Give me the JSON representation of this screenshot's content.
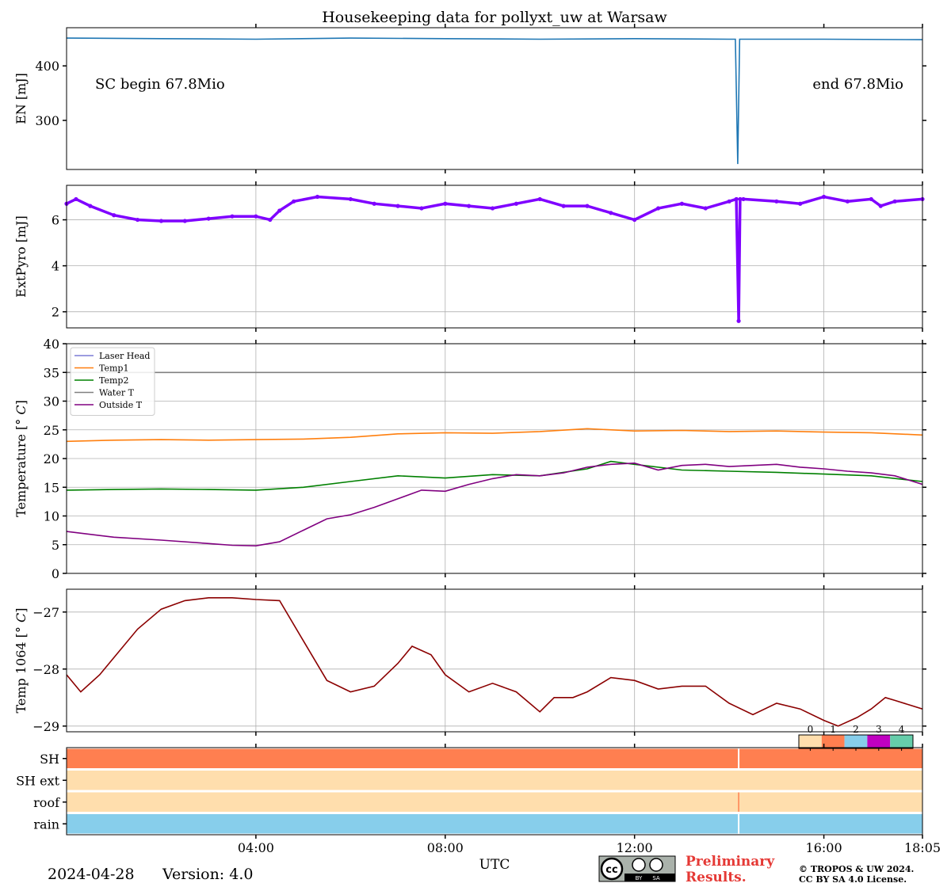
{
  "title": "Housekeeping data for pollyxt_uw at Warsaw",
  "xaxis": {
    "label": "UTC",
    "range_hours": [
      0,
      18.0833
    ],
    "ticks": [
      4,
      8,
      12,
      16,
      18.0833
    ],
    "tick_labels": [
      "04:00",
      "08:00",
      "12:00",
      "16:00",
      "18:05"
    ]
  },
  "footer": {
    "date": "2024-04-28",
    "version": "Version: 4.0",
    "preliminary": "Preliminary Results.",
    "copyright_line1": "© TROPOS & UW 2024.",
    "copyright_line2": "CC BY SA 4.0 License.",
    "license_badge": [
      "cc",
      "BY",
      "SA"
    ]
  },
  "colors": {
    "en": "#1f77b4",
    "extpyro": "#7f00ff",
    "laser_head": "#7b7bd6",
    "temp1": "#ff7f0e",
    "temp2": "#008000",
    "water_t": "#808080",
    "outside_t": "#800080",
    "temp1064": "#8b0000",
    "preliminary": "#e53935",
    "status": [
      "#ffdead",
      "#ff7f50",
      "#87ceeb",
      "#c000c0",
      "#66cdaa"
    ]
  },
  "chart_data": [
    {
      "type": "line",
      "name": "energy",
      "ylabel": "EN [mJ]",
      "ylim": [
        210,
        470
      ],
      "yticks": [
        300,
        400
      ],
      "grid": false,
      "annotations": [
        "SC begin 67.8Mio",
        "end 67.8Mio"
      ],
      "series": [
        {
          "values_x": [
            0,
            2,
            4,
            6,
            8,
            10,
            12,
            14,
            14.13,
            14.18,
            14.22,
            16,
            18.0833
          ],
          "values_y": [
            451,
            450,
            449,
            451,
            450,
            449,
            450,
            449,
            449,
            220,
            449,
            449,
            448
          ]
        }
      ]
    },
    {
      "type": "line",
      "name": "extpyro",
      "ylabel": "ExtPyro [mJ]",
      "ylim": [
        1.3,
        7.5
      ],
      "yticks": [
        2,
        4,
        6
      ],
      "grid": true,
      "series": [
        {
          "values_x": [
            0,
            0.2,
            0.5,
            1,
            1.5,
            2,
            2.5,
            3,
            3.5,
            4,
            4.3,
            4.5,
            4.8,
            5.3,
            6,
            6.5,
            7,
            7.5,
            8,
            8.5,
            9,
            9.5,
            10,
            10.5,
            11,
            11.5,
            12,
            12.5,
            13,
            13.5,
            14,
            14.15,
            14.2,
            14.23,
            14.3,
            15,
            15.5,
            16,
            16.5,
            17,
            17.2,
            17.5,
            18.0833
          ],
          "values_y": [
            6.7,
            6.9,
            6.6,
            6.2,
            6.0,
            5.95,
            5.95,
            6.05,
            6.15,
            6.15,
            6.0,
            6.4,
            6.8,
            7.0,
            6.9,
            6.7,
            6.6,
            6.5,
            6.7,
            6.6,
            6.5,
            6.7,
            6.9,
            6.6,
            6.6,
            6.3,
            6.0,
            6.5,
            6.7,
            6.5,
            6.8,
            6.9,
            1.6,
            6.9,
            6.9,
            6.8,
            6.7,
            7.0,
            6.8,
            6.9,
            6.6,
            6.8,
            6.9
          ]
        }
      ]
    },
    {
      "type": "line",
      "name": "temperature",
      "ylabel": "Temperature [$^\\circ C$]",
      "ylim": [
        0,
        40
      ],
      "yticks": [
        0,
        5,
        10,
        15,
        20,
        25,
        30,
        35,
        40
      ],
      "grid": true,
      "legend": "top-left",
      "series": [
        {
          "name": "Laser Head",
          "values_x": [],
          "values_y": []
        },
        {
          "name": "Temp1",
          "values_x": [
            0,
            1,
            2,
            3,
            4,
            5,
            6,
            7,
            8,
            9,
            10,
            11,
            12,
            13,
            14,
            15,
            16,
            17,
            18.0833
          ],
          "values_y": [
            23,
            23.2,
            23.3,
            23.2,
            23.3,
            23.4,
            23.7,
            24.3,
            24.5,
            24.4,
            24.7,
            25.2,
            24.8,
            24.9,
            24.7,
            24.8,
            24.6,
            24.5,
            24.1
          ]
        },
        {
          "name": "Temp2",
          "values_x": [
            0,
            1,
            2,
            3,
            4,
            5,
            6,
            7,
            8,
            9,
            10,
            11,
            11.5,
            12,
            13,
            14,
            15,
            16,
            17,
            18.0833
          ],
          "values_y": [
            14.5,
            14.6,
            14.7,
            14.6,
            14.5,
            15.0,
            16.0,
            17.0,
            16.6,
            17.2,
            17.0,
            18.2,
            19.5,
            19.0,
            18.0,
            17.8,
            17.6,
            17.3,
            17.0,
            16.0
          ]
        },
        {
          "name": "Water T",
          "values_x": [
            0,
            18.0833
          ],
          "values_y": [
            35,
            35
          ]
        },
        {
          "name": "Outside T",
          "values_x": [
            0,
            1,
            2,
            3,
            3.5,
            4,
            4.5,
            5,
            5.5,
            6,
            6.5,
            7,
            7.5,
            8,
            8.5,
            9,
            9.5,
            10,
            10.5,
            11,
            11.5,
            12,
            12.5,
            13,
            13.5,
            14,
            14.5,
            15,
            15.5,
            16,
            16.5,
            17,
            17.5,
            18.0833
          ],
          "values_y": [
            7.3,
            6.3,
            5.8,
            5.2,
            4.9,
            4.8,
            5.5,
            7.5,
            9.5,
            10.2,
            11.5,
            13.0,
            14.5,
            14.3,
            15.5,
            16.5,
            17.2,
            17.0,
            17.5,
            18.5,
            19.0,
            19.2,
            18.0,
            18.8,
            19.0,
            18.6,
            18.8,
            19.0,
            18.5,
            18.2,
            17.8,
            17.5,
            17.0,
            15.5
          ]
        }
      ]
    },
    {
      "type": "line",
      "name": "temp1064",
      "ylabel": "Temp 1064 [$^\\circ C$]",
      "ylim": [
        -29.1,
        -26.6
      ],
      "yticks": [
        -29,
        -28,
        -27
      ],
      "ytick_labels": [
        "−29",
        "−28",
        "−27"
      ],
      "grid": true,
      "series": [
        {
          "values_x": [
            0,
            0.3,
            0.7,
            1.0,
            1.5,
            2.0,
            2.5,
            3.0,
            3.5,
            4.0,
            4.5,
            5.0,
            5.5,
            6.0,
            6.5,
            7.0,
            7.3,
            7.7,
            8.0,
            8.5,
            9.0,
            9.5,
            10.0,
            10.3,
            10.7,
            11.0,
            11.5,
            12.0,
            12.5,
            13.0,
            13.5,
            14.0,
            14.5,
            15.0,
            15.5,
            16.0,
            16.3,
            16.7,
            17.0,
            17.3,
            17.5,
            18.0833
          ],
          "values_y": [
            -28.1,
            -28.4,
            -28.1,
            -27.8,
            -27.3,
            -26.95,
            -26.8,
            -26.75,
            -26.75,
            -26.78,
            -26.8,
            -27.5,
            -28.2,
            -28.4,
            -28.3,
            -27.9,
            -27.6,
            -27.75,
            -28.1,
            -28.4,
            -28.25,
            -28.4,
            -28.75,
            -28.5,
            -28.5,
            -28.4,
            -28.15,
            -28.2,
            -28.35,
            -28.3,
            -28.3,
            -28.6,
            -28.8,
            -28.6,
            -28.7,
            -28.9,
            -29.0,
            -28.85,
            -28.7,
            -28.5,
            -28.55,
            -28.7
          ]
        }
      ]
    },
    {
      "type": "heatmap",
      "name": "status",
      "rows": [
        "SH",
        "SH ext",
        "roof",
        "rain"
      ],
      "legend_labels": [
        "0",
        "1",
        "2",
        "3",
        "4"
      ],
      "values": [
        {
          "row": "SH",
          "value": 1,
          "gap_at_hours": 14.2
        },
        {
          "row": "SH ext",
          "value": 0
        },
        {
          "row": "roof",
          "value": 0,
          "mark_at_hours": 14.2
        },
        {
          "row": "rain",
          "value": 2,
          "gap_at_hours": 14.2
        }
      ]
    }
  ]
}
